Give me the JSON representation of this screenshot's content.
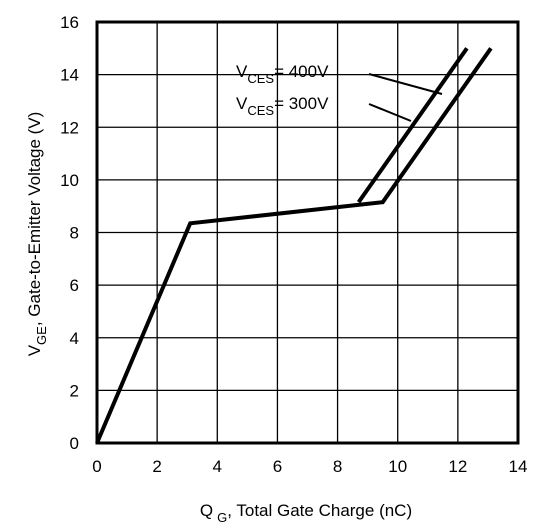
{
  "chart_data": {
    "type": "line",
    "xlabel_main": "Q",
    "xlabel_sub": "G",
    "xlabel_rest": ", Total Gate Charge (nC)",
    "ylabel_main": "V",
    "ylabel_sub": "GE",
    "ylabel_rest": ", Gate-to-Emitter Voltage (V)",
    "xlim": [
      0,
      14
    ],
    "ylim": [
      0,
      16
    ],
    "xticks": [
      0,
      2,
      4,
      6,
      8,
      10,
      12,
      14
    ],
    "yticks": [
      0,
      2,
      4,
      6,
      8,
      10,
      12,
      14,
      16
    ],
    "grid": true,
    "series": [
      {
        "name": "V_CES = 300V",
        "x": [
          0,
          3.1,
          9.5,
          13.1
        ],
        "y": [
          0,
          8.35,
          9.15,
          15.0
        ]
      },
      {
        "name": "V_CES = 400V",
        "x": [
          8.7,
          12.3
        ],
        "y": [
          9.15,
          15.0
        ]
      }
    ],
    "annotations": [
      {
        "prefix": "V",
        "sub": "CES",
        "rest": "= 400V"
      },
      {
        "prefix": "V",
        "sub": "CES",
        "rest": "= 300V"
      }
    ],
    "colors": {
      "line": "#000000",
      "grid": "#000000",
      "background": "#ffffff"
    }
  }
}
